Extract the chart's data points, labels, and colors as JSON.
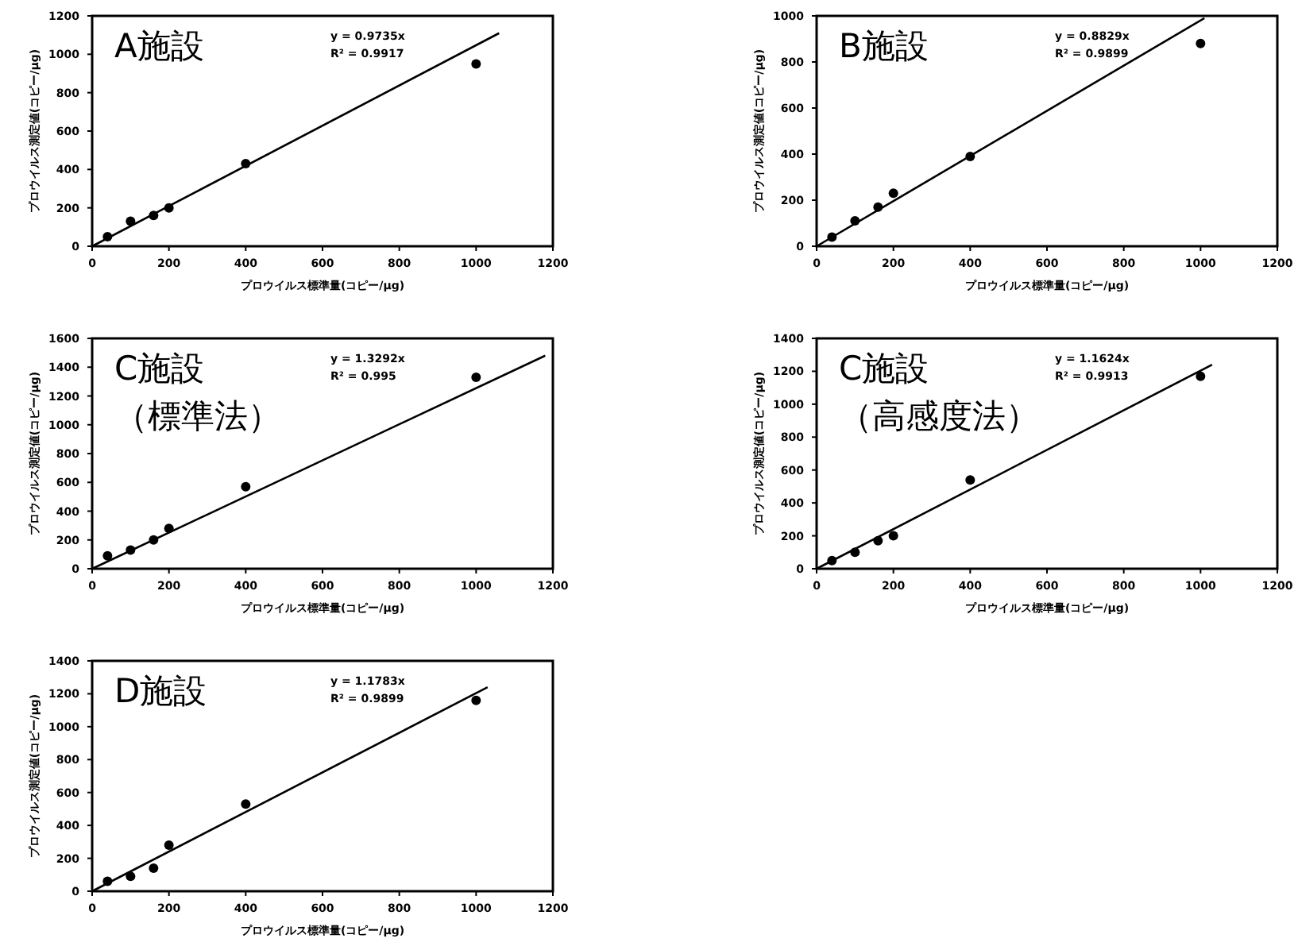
{
  "chart_data": [
    {
      "type": "scatter",
      "title": "A施設",
      "xlabel": "プロウイルス標準量(コピー/μg)",
      "ylabel": "プロウイルス測定値(コピー/μg)",
      "annotations": [
        "y = 0.9735x",
        "R² = 0.9917"
      ],
      "xlim": [
        0,
        1200
      ],
      "ylim": [
        0,
        1200
      ],
      "xticks": [
        0,
        200,
        400,
        600,
        800,
        1000,
        1200
      ],
      "yticks": [
        0,
        200,
        400,
        600,
        800,
        1000,
        1200
      ],
      "series": [
        {
          "type": "scatter",
          "marker": "circle",
          "color": "#000000",
          "x": [
            40,
            100,
            160,
            200,
            400,
            1000
          ],
          "values": [
            50,
            130,
            160,
            200,
            430,
            950
          ]
        },
        {
          "type": "line",
          "color": "#000000",
          "x": [
            0,
            1060
          ],
          "values": [
            0,
            1110
          ]
        }
      ]
    },
    {
      "type": "scatter",
      "title": "B施設",
      "xlabel": "プロウイルス標準量(コピー/μg)",
      "ylabel": "プロウイルス測定値(コピー/μg)",
      "annotations": [
        "y = 0.8829x",
        "R² = 0.9899"
      ],
      "xlim": [
        0,
        1200
      ],
      "ylim": [
        0,
        1000
      ],
      "xticks": [
        0,
        200,
        400,
        600,
        800,
        1000,
        1200
      ],
      "yticks": [
        0,
        200,
        400,
        600,
        800,
        1000
      ],
      "series": [
        {
          "type": "scatter",
          "marker": "circle",
          "color": "#000000",
          "x": [
            40,
            100,
            160,
            200,
            400,
            1000
          ],
          "values": [
            40,
            110,
            170,
            230,
            390,
            880
          ]
        },
        {
          "type": "line",
          "color": "#000000",
          "x": [
            0,
            1010
          ],
          "values": [
            0,
            990
          ]
        }
      ]
    },
    {
      "type": "scatter",
      "title": "C施設（標準法）",
      "xlabel": "プロウイルス標準量(コピー/μg)",
      "ylabel": "プロウイルス測定値(コピー/μg)",
      "annotations": [
        "y = 1.3292x",
        "R² = 0.995"
      ],
      "xlim": [
        0,
        1200
      ],
      "ylim": [
        0,
        1600
      ],
      "xticks": [
        0,
        200,
        400,
        600,
        800,
        1000,
        1200
      ],
      "yticks": [
        0,
        200,
        400,
        600,
        800,
        1000,
        1200,
        1400,
        1600
      ],
      "series": [
        {
          "type": "scatter",
          "marker": "circle",
          "color": "#000000",
          "x": [
            40,
            100,
            160,
            200,
            400,
            1000
          ],
          "values": [
            90,
            130,
            200,
            280,
            570,
            1330
          ]
        },
        {
          "type": "line",
          "color": "#000000",
          "x": [
            0,
            1180
          ],
          "values": [
            0,
            1480
          ]
        }
      ]
    },
    {
      "type": "scatter",
      "title": "C施設（高感度法）",
      "xlabel": "プロウイルス標準量(コピー/μg)",
      "ylabel": "プロウイルス測定値(コピー/μg)",
      "annotations": [
        "y = 1.1624x",
        "R² = 0.9913"
      ],
      "xlim": [
        0,
        1200
      ],
      "ylim": [
        0,
        1400
      ],
      "xticks": [
        0,
        200,
        400,
        600,
        800,
        1000,
        1200
      ],
      "yticks": [
        0,
        200,
        400,
        600,
        800,
        1000,
        1200,
        1400
      ],
      "series": [
        {
          "type": "scatter",
          "marker": "circle",
          "color": "#000000",
          "x": [
            40,
            100,
            160,
            200,
            400,
            1000
          ],
          "values": [
            50,
            100,
            170,
            200,
            540,
            1170
          ]
        },
        {
          "type": "line",
          "color": "#000000",
          "x": [
            0,
            1030
          ],
          "values": [
            0,
            1240
          ]
        }
      ]
    },
    {
      "type": "scatter",
      "title": "D施設",
      "xlabel": "プロウイルス標準量(コピー/μg)",
      "ylabel": "プロウイルス測定値(コピー/μg)",
      "annotations": [
        "y = 1.1783x",
        "R² = 0.9899"
      ],
      "xlim": [
        0,
        1200
      ],
      "ylim": [
        0,
        1400
      ],
      "xticks": [
        0,
        200,
        400,
        600,
        800,
        1000,
        1200
      ],
      "yticks": [
        0,
        200,
        400,
        600,
        800,
        1000,
        1200,
        1400
      ],
      "series": [
        {
          "type": "scatter",
          "marker": "circle",
          "color": "#000000",
          "x": [
            40,
            100,
            160,
            200,
            400,
            1000
          ],
          "values": [
            60,
            90,
            140,
            280,
            530,
            1160
          ]
        },
        {
          "type": "line",
          "color": "#000000",
          "x": [
            0,
            1030
          ],
          "values": [
            0,
            1240
          ]
        }
      ]
    }
  ]
}
